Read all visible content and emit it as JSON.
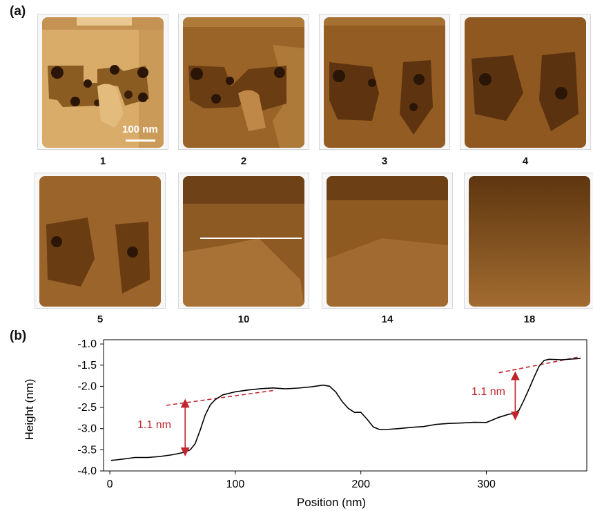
{
  "panel_a": {
    "label": "(a)",
    "scale_bar": "100 nm",
    "frames": [
      "1",
      "2",
      "3",
      "4",
      "5",
      "10",
      "14",
      "18"
    ]
  },
  "panel_b": {
    "label": "(b)",
    "annotations": [
      "1.1 nm",
      "1.1 nm"
    ]
  },
  "colors": {
    "afm_light": "#d4a664",
    "afm_mid": "#8a5a1e",
    "afm_dark": "#2a1506",
    "annotation": "#c0262d"
  },
  "chart_data": {
    "type": "line",
    "xlabel": "Position (nm)",
    "ylabel": "Height (nm)",
    "xlim": [
      -5,
      380
    ],
    "ylim": [
      -4.0,
      -0.9
    ],
    "xticks": [
      0,
      100,
      200,
      300
    ],
    "yticks": [
      -1.0,
      -1.5,
      -2.0,
      -2.5,
      -3.0,
      -3.5,
      -4.0
    ],
    "ytick_labels": [
      "-1.0",
      "-1.5",
      "-2.0",
      "-2.5",
      "-3.0",
      "-3.5",
      "-4.0"
    ],
    "series": [
      {
        "x": [
          1,
          5,
          10,
          20,
          30,
          40,
          50,
          58,
          64,
          68,
          72,
          76,
          80,
          84,
          90,
          100,
          110,
          120,
          130,
          140,
          150,
          160,
          170,
          175,
          180,
          185,
          190,
          195,
          200,
          205,
          210,
          215,
          220,
          230,
          240,
          250,
          260,
          270,
          280,
          290,
          300,
          310,
          318,
          322,
          326,
          330,
          334,
          338,
          342,
          346,
          350,
          360,
          375
        ],
        "y": [
          -3.75,
          -3.72,
          -3.7,
          -3.68,
          -3.7,
          -3.68,
          -3.62,
          -3.55,
          -3.48,
          -3.35,
          -3.05,
          -2.7,
          -2.45,
          -2.3,
          -2.18,
          -2.12,
          -2.1,
          -2.08,
          -2.05,
          -2.05,
          -2.02,
          -2.0,
          -1.98,
          -2.02,
          -2.15,
          -2.35,
          -2.5,
          -2.6,
          -2.62,
          -2.8,
          -2.98,
          -3.02,
          -3.0,
          -2.98,
          -2.97,
          -2.97,
          -2.92,
          -2.88,
          -2.85,
          -2.83,
          -2.85,
          -2.75,
          -2.68,
          -2.65,
          -2.55,
          -2.3,
          -2.05,
          -1.8,
          -1.55,
          -1.4,
          -1.35,
          -1.35,
          -1.33
        ]
      }
    ],
    "guides": [
      {
        "x": [
          45,
          130
        ],
        "y": [
          -2.45,
          -2.1
        ]
      },
      {
        "x": [
          310,
          375
        ],
        "y": [
          -1.68,
          -1.3
        ]
      }
    ],
    "step_arrows": [
      {
        "x": 60,
        "y": [
          -2.4,
          -3.55
        ]
      },
      {
        "x": 323,
        "y": [
          -1.75,
          -2.7
        ]
      }
    ]
  }
}
